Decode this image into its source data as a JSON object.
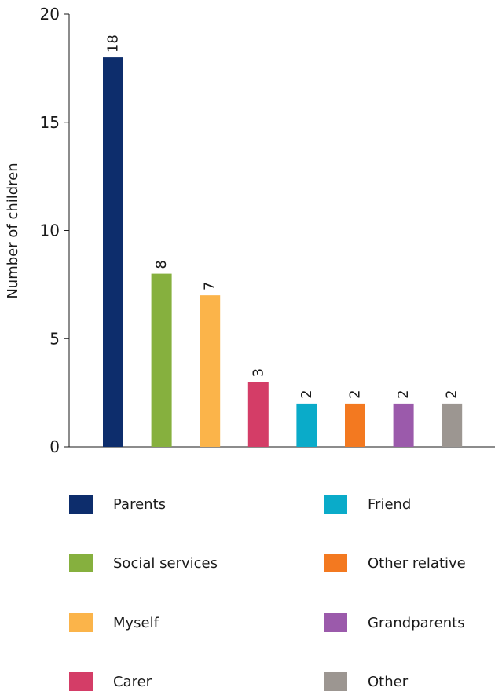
{
  "chart_data": {
    "type": "bar",
    "title": "",
    "xlabel": "",
    "ylabel": "Number of children",
    "ylim": [
      0,
      20
    ],
    "yticks": [
      0,
      5,
      10,
      15,
      20
    ],
    "grid": false,
    "categories": [
      "Parents",
      "Social services",
      "Myself",
      "Carer",
      "Friend",
      "Other relative",
      "Grandparents",
      "Other"
    ],
    "values": [
      18,
      8,
      7,
      3,
      2,
      2,
      2,
      2
    ],
    "data_labels": [
      "18",
      "8",
      "7",
      "3",
      "2",
      "2",
      "2",
      "2"
    ],
    "colors": [
      "#0d2d6c",
      "#86b03e",
      "#fbb44a",
      "#d43d67",
      "#0aabc9",
      "#f37920",
      "#9b5aab",
      "#9c9691"
    ],
    "legend_placement": "bottom"
  },
  "legend": {
    "items": [
      {
        "label": "Parents",
        "color": "#0d2d6c"
      },
      {
        "label": "Social services",
        "color": "#86b03e"
      },
      {
        "label": "Myself",
        "color": "#fbb44a"
      },
      {
        "label": "Carer",
        "color": "#d43d67"
      },
      {
        "label": "Friend",
        "color": "#0aabc9"
      },
      {
        "label": "Other relative",
        "color": "#f37920"
      },
      {
        "label": "Grandparents",
        "color": "#9b5aab"
      },
      {
        "label": "Other",
        "color": "#9c9691"
      }
    ]
  }
}
